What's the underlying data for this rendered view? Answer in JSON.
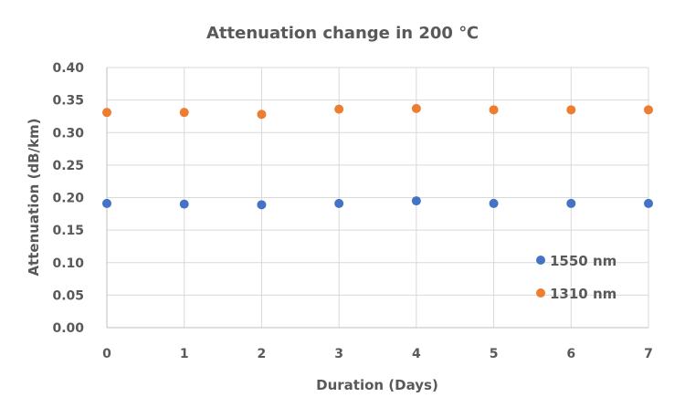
{
  "chart_data": {
    "type": "scatter",
    "title": "Attenuation change in 200 ℃",
    "xlabel": "Duration (Days)",
    "ylabel": "Attenuation (dB/km)",
    "xlim": [
      0,
      7
    ],
    "ylim": [
      0.0,
      0.4
    ],
    "x_ticks": [
      "0",
      "1",
      "2",
      "3",
      "4",
      "5",
      "6",
      "7"
    ],
    "y_ticks": [
      "0.00",
      "0.05",
      "0.10",
      "0.15",
      "0.20",
      "0.25",
      "0.30",
      "0.35",
      "0.40"
    ],
    "grid": true,
    "legend_position": "bottom-right",
    "series": [
      {
        "name": "1550 nm",
        "color": "#4472C4",
        "x": [
          0,
          1,
          2,
          3,
          4,
          5,
          6,
          7
        ],
        "y": [
          0.191,
          0.19,
          0.189,
          0.191,
          0.195,
          0.191,
          0.191,
          0.191
        ]
      },
      {
        "name": "1310 nm",
        "color": "#ED7D31",
        "x": [
          0,
          1,
          2,
          3,
          4,
          5,
          6,
          7
        ],
        "y": [
          0.331,
          0.331,
          0.328,
          0.336,
          0.337,
          0.335,
          0.335,
          0.335
        ]
      }
    ]
  }
}
